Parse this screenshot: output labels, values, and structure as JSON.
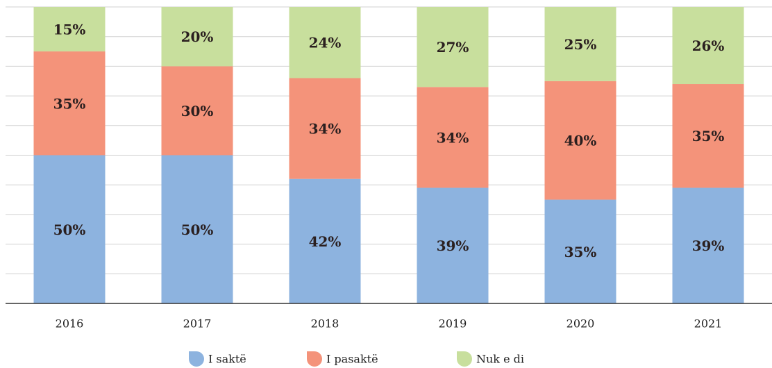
{
  "chart_data": {
    "type": "stacked_bar",
    "categories": [
      "2016",
      "2017",
      "2018",
      "2019",
      "2020",
      "2021"
    ],
    "series": [
      {
        "name": "I saktë",
        "color": "#8db3df",
        "values": [
          50,
          50,
          42,
          39,
          35,
          39
        ],
        "value_labels": [
          "50%",
          "50%",
          "42%",
          "39%",
          "35%",
          "39%"
        ]
      },
      {
        "name": "I pasaktë",
        "color": "#f4937a",
        "values": [
          35,
          30,
          34,
          34,
          40,
          35
        ],
        "value_labels": [
          "35%",
          "30%",
          "34%",
          "34%",
          "40%",
          "35%"
        ]
      },
      {
        "name": "Nuk e di",
        "color": "#c8df9d",
        "values": [
          15,
          20,
          24,
          27,
          25,
          26
        ],
        "value_labels": [
          "15%",
          "20%",
          "24%",
          "27%",
          "25%",
          "26%"
        ]
      }
    ],
    "ylim": [
      0,
      100
    ],
    "yticks": [
      0,
      10,
      20,
      30,
      40,
      50,
      60,
      70,
      80,
      90,
      100
    ],
    "grid": true,
    "legend": "bottom"
  }
}
